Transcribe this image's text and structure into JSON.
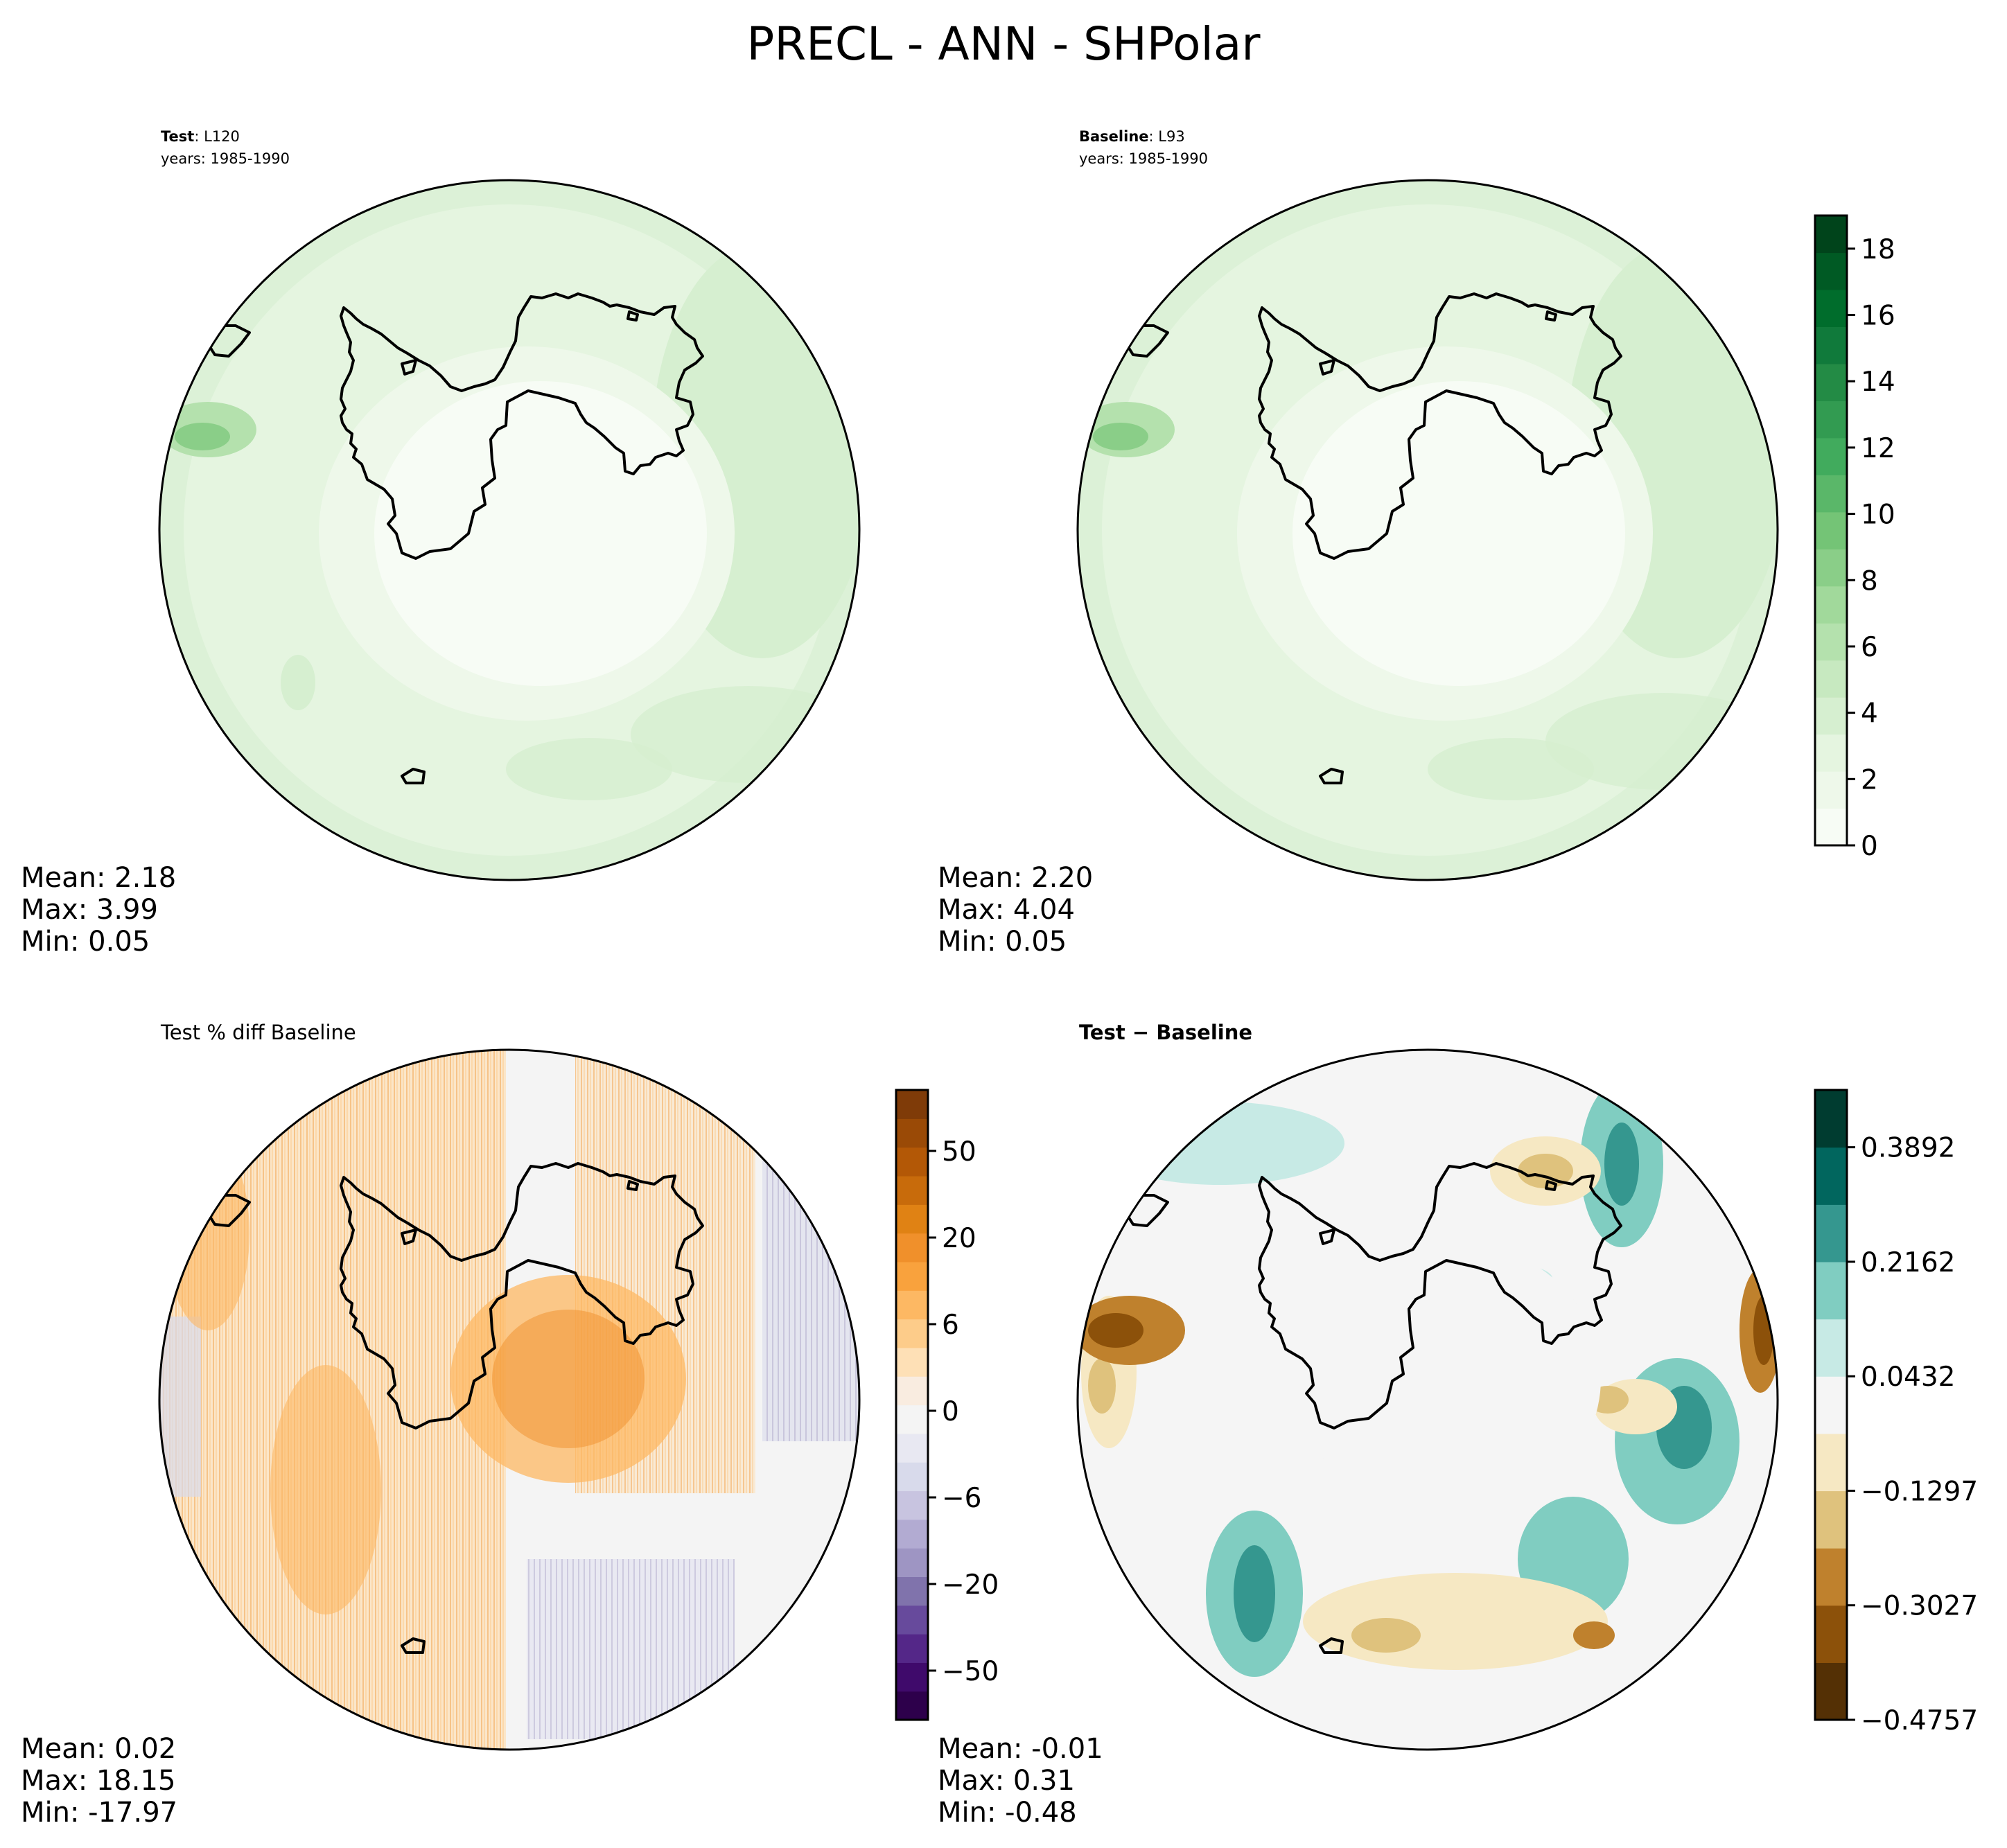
{
  "figure": {
    "title": "PRECL - ANN - SHPolar"
  },
  "panels": [
    {
      "id": "test",
      "title_bold": "Test",
      "title_rest": ": L120",
      "subtitle": "years: 1985-1990",
      "stats": {
        "mean": "Mean:  2.18",
        "max": "Max:  3.99",
        "min": "Min:  0.05"
      }
    },
    {
      "id": "baseline",
      "title_bold": "Baseline",
      "title_rest": ": L93",
      "subtitle": "years: 1985-1990",
      "stats": {
        "mean": "Mean:  2.20",
        "max": "Max:  4.04",
        "min": "Min:  0.05"
      }
    },
    {
      "id": "pct-diff",
      "title_bold": "",
      "title_rest": "Test % diff Baseline",
      "subtitle": "",
      "stats": {
        "mean": "Mean:  0.02",
        "max": "Max: 18.15",
        "min": "Min: -17.97"
      }
    },
    {
      "id": "diff",
      "title_bold": "Test − Baseline",
      "title_rest": "",
      "subtitle": "",
      "stats": {
        "mean": "Mean: -0.01",
        "max": "Max:  0.31",
        "min": "Min: -0.48"
      }
    }
  ],
  "colorbars": [
    {
      "id": "precip",
      "range": [
        0,
        19
      ],
      "ticks": [
        {
          "value": 0,
          "label": "0"
        },
        {
          "value": 2,
          "label": "2"
        },
        {
          "value": 4,
          "label": "4"
        },
        {
          "value": 6,
          "label": "6"
        },
        {
          "value": 8,
          "label": "8"
        },
        {
          "value": 10,
          "label": "10"
        },
        {
          "value": 12,
          "label": "12"
        },
        {
          "value": 14,
          "label": "14"
        },
        {
          "value": 16,
          "label": "16"
        },
        {
          "value": 18,
          "label": "18"
        }
      ],
      "colors": [
        "#f7fcf5",
        "#eef8ea",
        "#e5f5e0",
        "#d6efd0",
        "#c7e9c0",
        "#b4e1ad",
        "#a1d99b",
        "#8ace88",
        "#74c476",
        "#5ab769",
        "#41ab5d",
        "#329b51",
        "#238b45",
        "#107a3b",
        "#006d2c",
        "#005a24",
        "#00441b"
      ]
    },
    {
      "id": "pct",
      "ticks": [
        {
          "label": "50"
        },
        {
          "label": "20"
        },
        {
          "label": "6"
        },
        {
          "label": "0"
        },
        {
          "label": "−6"
        },
        {
          "label": "−20"
        },
        {
          "label": "−50"
        }
      ],
      "colors": [
        "#2d004b",
        "#3f0a6b",
        "#542788",
        "#674a9c",
        "#8073ac",
        "#9e95c3",
        "#b2abd2",
        "#c8c4e0",
        "#d8daeb",
        "#e8e8f2",
        "#f4f4f4",
        "#f9ece0",
        "#fee0b6",
        "#fdcc8a",
        "#fdb863",
        "#f9a23d",
        "#f0902b",
        "#e08214",
        "#c86b0b",
        "#b35806",
        "#9a4a06",
        "#7f3b08"
      ]
    },
    {
      "id": "diffbar",
      "range": [
        -0.4757,
        0.4757
      ],
      "ticks": [
        {
          "value": 0.3892,
          "label": "0.3892"
        },
        {
          "value": 0.2162,
          "label": "0.2162"
        },
        {
          "value": 0.0432,
          "label": "0.0432"
        },
        {
          "value": -0.1297,
          "label": "−0.1297"
        },
        {
          "value": -0.3027,
          "label": "−0.3027"
        },
        {
          "value": -0.4757,
          "label": "−0.4757"
        }
      ],
      "colors": [
        "#543005",
        "#8c510a",
        "#bf812d",
        "#dfc27d",
        "#f6e8c3",
        "#f5f5f5",
        "#c7eae5",
        "#80cdc1",
        "#35978f",
        "#01665e",
        "#003c30"
      ]
    }
  ]
}
